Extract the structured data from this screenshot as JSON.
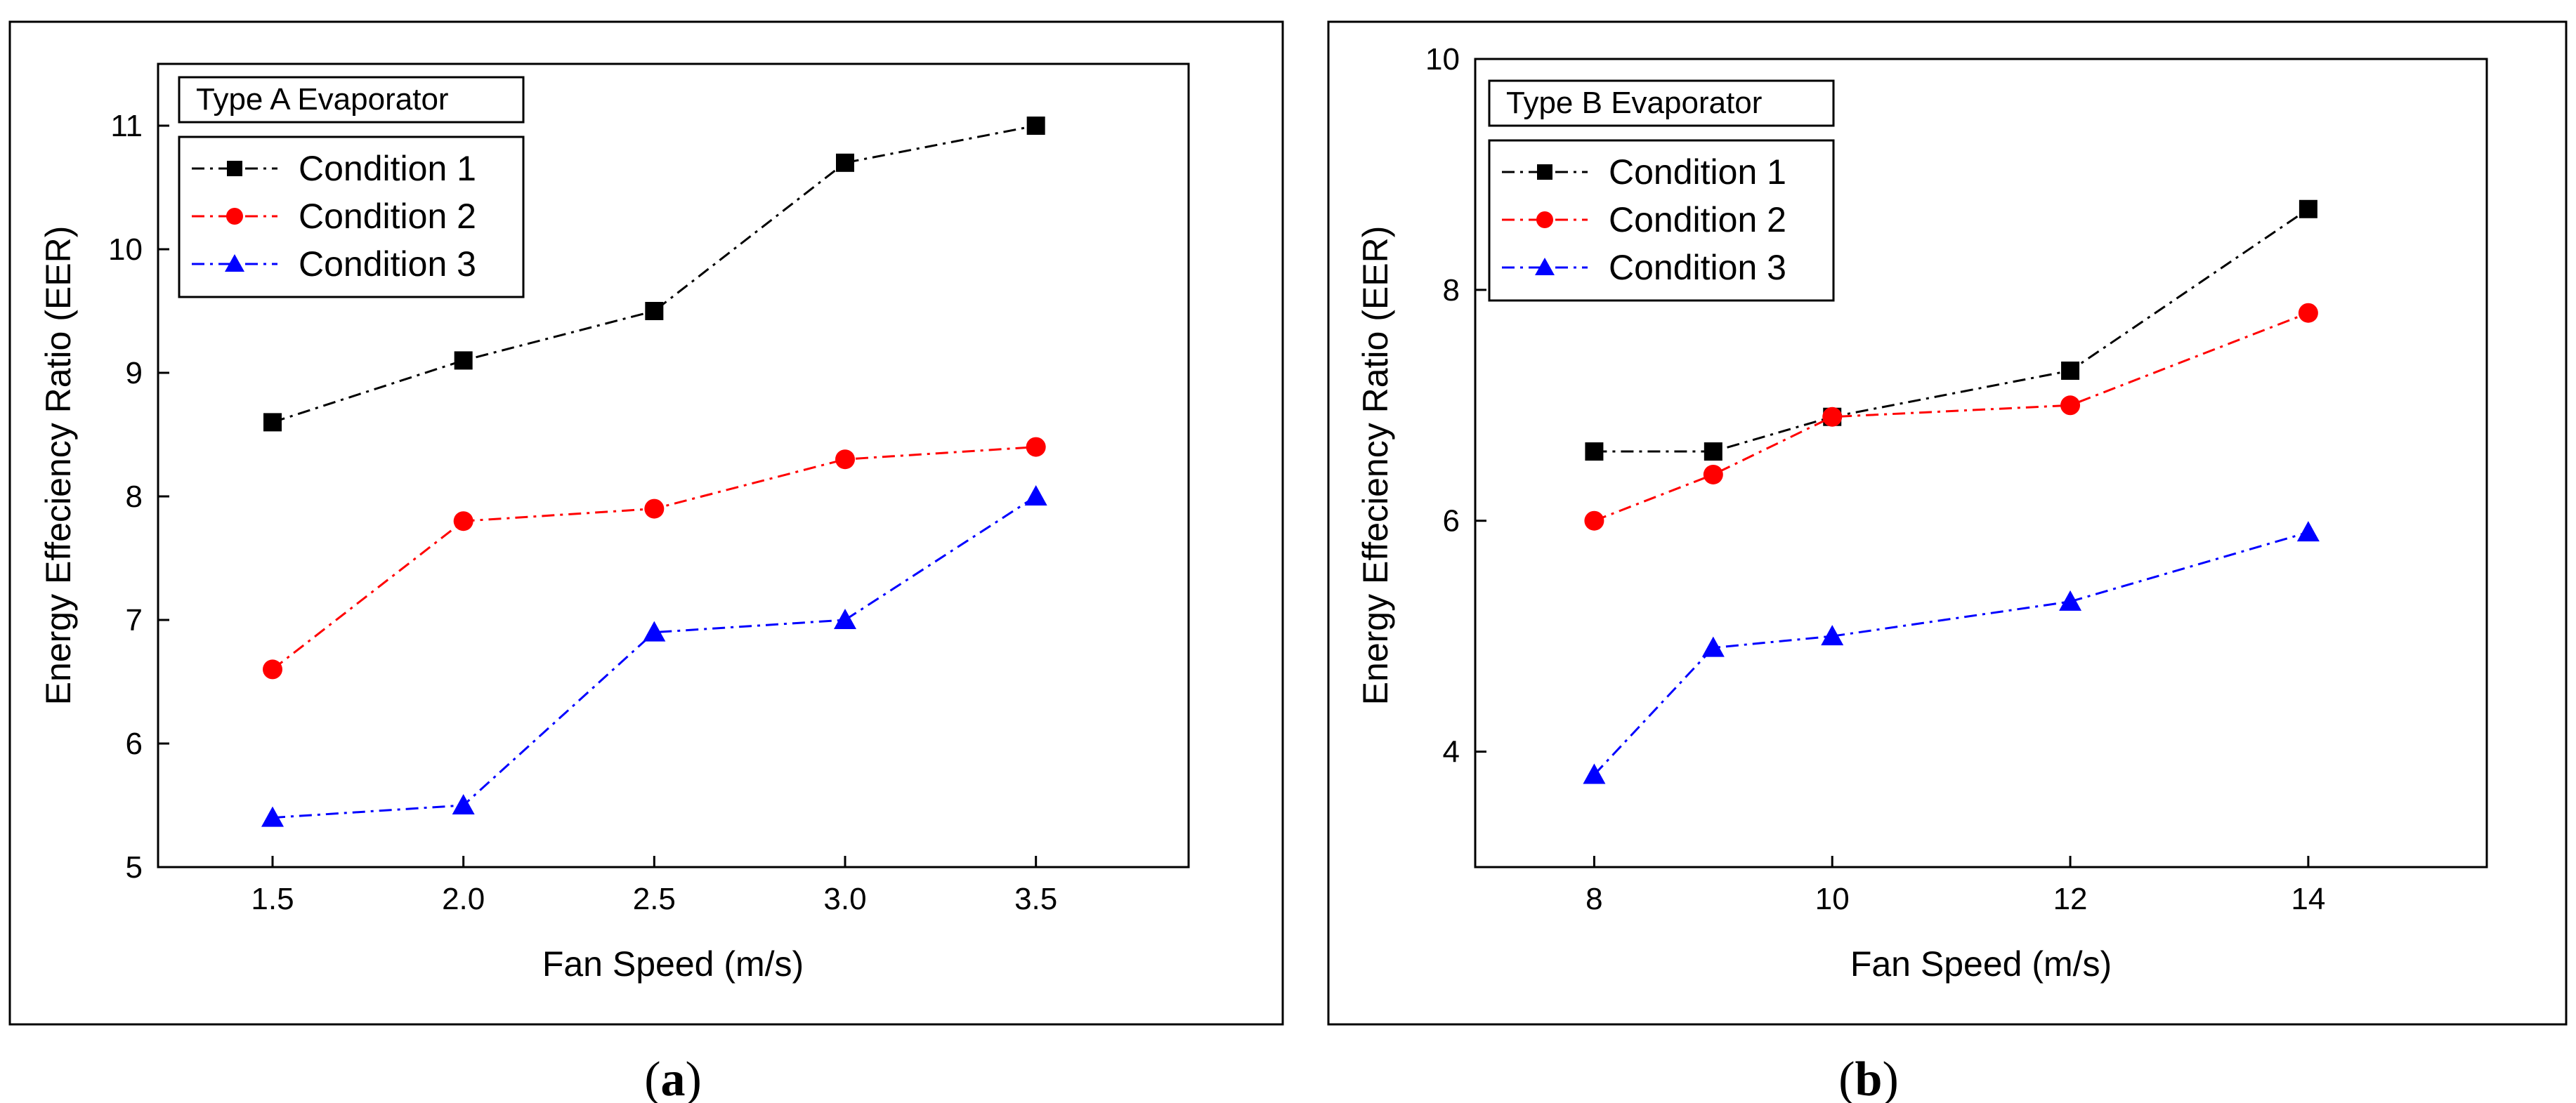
{
  "figure": {
    "caption_a_letter": "a",
    "caption_b_letter": "b",
    "caption_open": "(",
    "caption_close": ")"
  },
  "chart_data": [
    {
      "type": "line",
      "panel": "a",
      "legend_title": "Type A Evaporator",
      "xlabel": "Fan Speed (m/s)",
      "ylabel": "Energy Effeciency Ratio (EER)",
      "x": [
        1.5,
        2.0,
        2.5,
        3.0,
        3.5
      ],
      "xlim": [
        1.2,
        3.9
      ],
      "ylim": [
        5,
        11.5
      ],
      "xticks": [
        1.5,
        2.0,
        2.5,
        3.0,
        3.5
      ],
      "xtick_labels": [
        "1.5",
        "2.0",
        "2.5",
        "3.0",
        "3.5"
      ],
      "yticks": [
        5,
        6,
        7,
        8,
        9,
        10,
        11
      ],
      "ytick_labels": [
        "5",
        "6",
        "7",
        "8",
        "9",
        "10",
        "11"
      ],
      "legend_placement": "top-left",
      "series": [
        {
          "name": "Condition 1",
          "color": "#000000",
          "marker": "square",
          "values": [
            8.6,
            9.1,
            9.5,
            10.7,
            11.0
          ]
        },
        {
          "name": "Condition 2",
          "color": "#ff0000",
          "marker": "circle",
          "values": [
            6.6,
            7.8,
            7.9,
            8.3,
            8.4
          ]
        },
        {
          "name": "Condition 3",
          "color": "#0000ff",
          "marker": "triangle",
          "values": [
            5.4,
            5.5,
            6.9,
            7.0,
            8.0
          ]
        }
      ]
    },
    {
      "type": "line",
      "panel": "b",
      "legend_title": "Type B Evaporator",
      "xlabel": "Fan Speed (m/s)",
      "ylabel": "Energy Effeciency Ratio (EER)",
      "x": [
        8,
        9,
        10,
        12,
        14
      ],
      "xlim": [
        7,
        15.5
      ],
      "ylim": [
        3,
        10
      ],
      "xticks": [
        8,
        10,
        12,
        14
      ],
      "xtick_labels": [
        "8",
        "10",
        "12",
        "14"
      ],
      "yticks": [
        4,
        6,
        8,
        10
      ],
      "ytick_labels": [
        "4",
        "6",
        "8",
        "10"
      ],
      "legend_placement": "top-left",
      "series": [
        {
          "name": "Condition 1",
          "color": "#000000",
          "marker": "square",
          "values": [
            6.6,
            6.6,
            6.9,
            7.3,
            8.7
          ]
        },
        {
          "name": "Condition 2",
          "color": "#ff0000",
          "marker": "circle",
          "values": [
            6.0,
            6.4,
            6.9,
            7.0,
            7.8
          ]
        },
        {
          "name": "Condition 3",
          "color": "#0000ff",
          "marker": "triangle",
          "values": [
            3.8,
            4.9,
            5.0,
            5.3,
            5.9
          ]
        }
      ]
    }
  ]
}
